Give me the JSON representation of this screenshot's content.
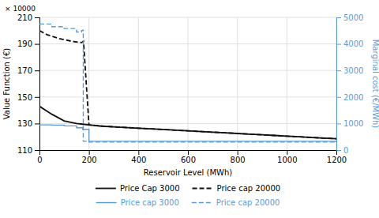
{
  "chart_data": {
    "type": "line",
    "xlabel": "Reservoir Level (MWh)",
    "ylabel": "Value Function (€)",
    "y2label": "Marginal cost (€/MWh)",
    "annotations": [
      "× 10000"
    ],
    "xlim": [
      0,
      1200
    ],
    "xticks": [
      0,
      200,
      400,
      600,
      800,
      1000,
      1200
    ],
    "ylim": [
      110,
      210
    ],
    "yticks": [
      110,
      130,
      150,
      170,
      190,
      210
    ],
    "y2lim": [
      0,
      5000
    ],
    "y2ticks": [
      0,
      1000,
      2000,
      3000,
      4000,
      5000
    ],
    "grid": true,
    "legend": "bottom",
    "series": [
      {
        "name": "Price Cap 3000",
        "type": "line",
        "color": "#111111",
        "line_style": "solid",
        "x": [
          0,
          50,
          100,
          150,
          175,
          200,
          250,
          300,
          400,
          500,
          600,
          700,
          750,
          800,
          850,
          900,
          950,
          1000,
          1050,
          1100,
          1150,
          1200
        ],
        "values": [
          143,
          137,
          132,
          130,
          129.5,
          129,
          128,
          127.5,
          126.5,
          125.5,
          124.5,
          123.5,
          123,
          122.5,
          122,
          121.5,
          121,
          120.5,
          120,
          119.5,
          119,
          118.5
        ]
      },
      {
        "name": "Price cap 20000",
        "type": "line",
        "color": "#111111",
        "line_style": "dashed",
        "x": [
          0,
          30,
          80,
          130,
          170,
          178,
          200,
          300,
          400,
          500,
          600,
          700,
          750,
          800,
          850,
          900,
          950,
          1000,
          1050,
          1100,
          1150,
          1200
        ],
        "values": [
          200,
          197,
          194,
          192,
          191,
          192,
          129,
          127.5,
          126.5,
          125.5,
          124.5,
          123.5,
          123,
          122.5,
          122,
          121.5,
          121,
          120.5,
          120,
          119.5,
          119,
          118.5
        ]
      },
      {
        "name": "Price cap 3000",
        "type": "step",
        "axis": "y2",
        "color": "#5B9BD5",
        "line_style": "solid",
        "x": [
          0,
          50,
          100,
          150,
          175,
          200,
          1200
        ],
        "values": [
          950,
          940,
          910,
          840,
          780,
          330,
          300
        ]
      },
      {
        "name": "Price cap 20000",
        "type": "step",
        "axis": "y2",
        "color": "#5B9BD5",
        "line_style": "dashed",
        "x": [
          0,
          10,
          50,
          100,
          150,
          170,
          175,
          177,
          200,
          1200
        ],
        "values": [
          4750,
          4750,
          4650,
          4580,
          4450,
          4500,
          4520,
          330,
          300,
          270
        ]
      }
    ]
  }
}
